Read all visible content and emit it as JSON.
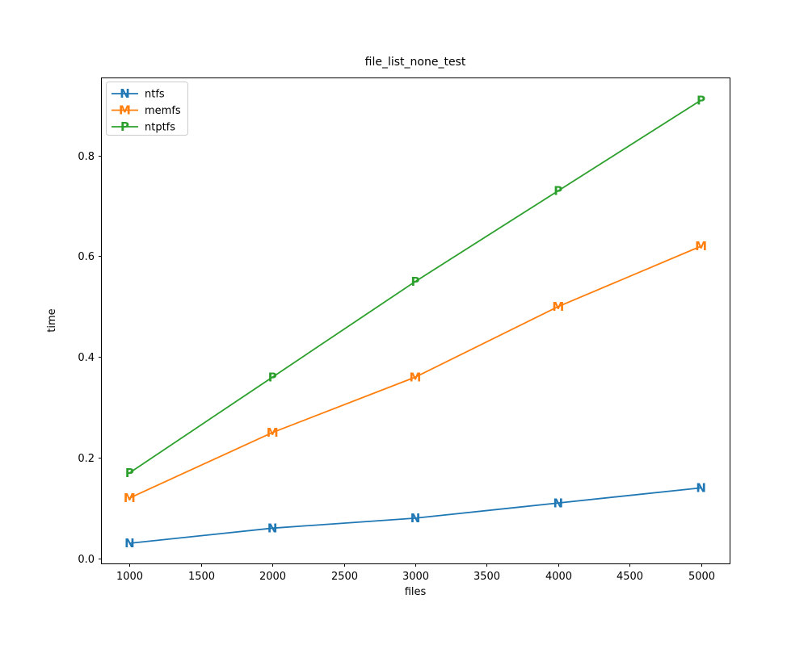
{
  "chart_data": {
    "type": "line",
    "title": "file_list_none_test",
    "xlabel": "files",
    "ylabel": "time",
    "x": [
      1000,
      2000,
      3000,
      4000,
      5000
    ],
    "series": [
      {
        "name": "ntfs",
        "color": "#1f77b4",
        "marker": "N",
        "values": [
          0.03,
          0.06,
          0.08,
          0.11,
          0.14
        ]
      },
      {
        "name": "memfs",
        "color": "#ff7f0e",
        "marker": "M",
        "values": [
          0.12,
          0.25,
          0.36,
          0.5,
          0.62
        ]
      },
      {
        "name": "ntptfs",
        "color": "#2ca02c",
        "marker": "P",
        "values": [
          0.17,
          0.36,
          0.55,
          0.73,
          0.91
        ]
      }
    ],
    "xticks": [
      1000,
      1500,
      2000,
      2500,
      3000,
      3500,
      4000,
      4500,
      5000
    ],
    "xtick_labels": [
      "1000",
      "1500",
      "2000",
      "2500",
      "3000",
      "3500",
      "4000",
      "4500",
      "5000"
    ],
    "yticks": [
      0.0,
      0.2,
      0.4,
      0.6,
      0.8
    ],
    "ytick_labels": [
      "0.0",
      "0.2",
      "0.4",
      "0.6",
      "0.8"
    ],
    "xlim": [
      800,
      5200
    ],
    "ylim": [
      -0.01,
      0.955
    ],
    "grid": false,
    "legend_position": "upper-left",
    "axis_color": "#000000",
    "legend_border_color": "#cccccc",
    "background": "#ffffff"
  }
}
